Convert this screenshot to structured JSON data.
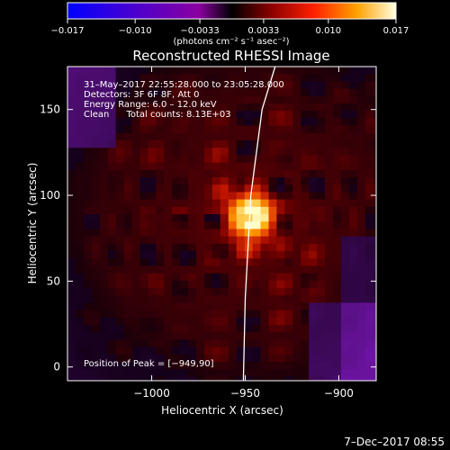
{
  "chart_data": {
    "type": "heatmap",
    "title": "Reconstructed RHESSI Image",
    "xlabel": "Heliocentric X (arcsec)",
    "ylabel": "Heliocentric Y (arcsec)",
    "xlim": [
      -1045,
      -880
    ],
    "ylim": [
      -8,
      175
    ],
    "xticks": [
      -1000,
      -950,
      -900
    ],
    "xtick_labels": [
      "−1000",
      "−950",
      "−900"
    ],
    "yticks": [
      0,
      50,
      100,
      150
    ],
    "ytick_labels": [
      "0",
      "50",
      "100",
      "150"
    ],
    "colorbar": {
      "min": -0.017,
      "max": 0.017,
      "ticks": [
        -0.017,
        -0.01,
        -0.0033,
        0.0033,
        0.01,
        0.017
      ],
      "tick_labels": [
        "−0.017",
        "−0.010",
        "−0.0033",
        "0.0033",
        "0.010",
        "0.017"
      ],
      "units": "(photons cm⁻² s⁻¹ asec⁻²)"
    },
    "info": [
      "31–May–2017 22:55:28.000 to 23:05:28.000",
      "Detectors: 3F 6F 8F, Att 0",
      "Energy Range: 6.0 – 12.0 keV",
      "Clean      Total counts: 8.13E+03"
    ],
    "peak": {
      "x": -949,
      "y": 90,
      "label": "Position of Peak = [−949,90]"
    },
    "limb_curve": [
      [
        -951,
        -8
      ],
      [
        -950,
        40
      ],
      [
        -947,
        100
      ],
      [
        -941,
        150
      ],
      [
        -934,
        175
      ]
    ]
  },
  "footer": {
    "date": "7–Dec–2017 08:55"
  },
  "colors": {
    "background": "#000000",
    "foreground": "#ffffff"
  }
}
